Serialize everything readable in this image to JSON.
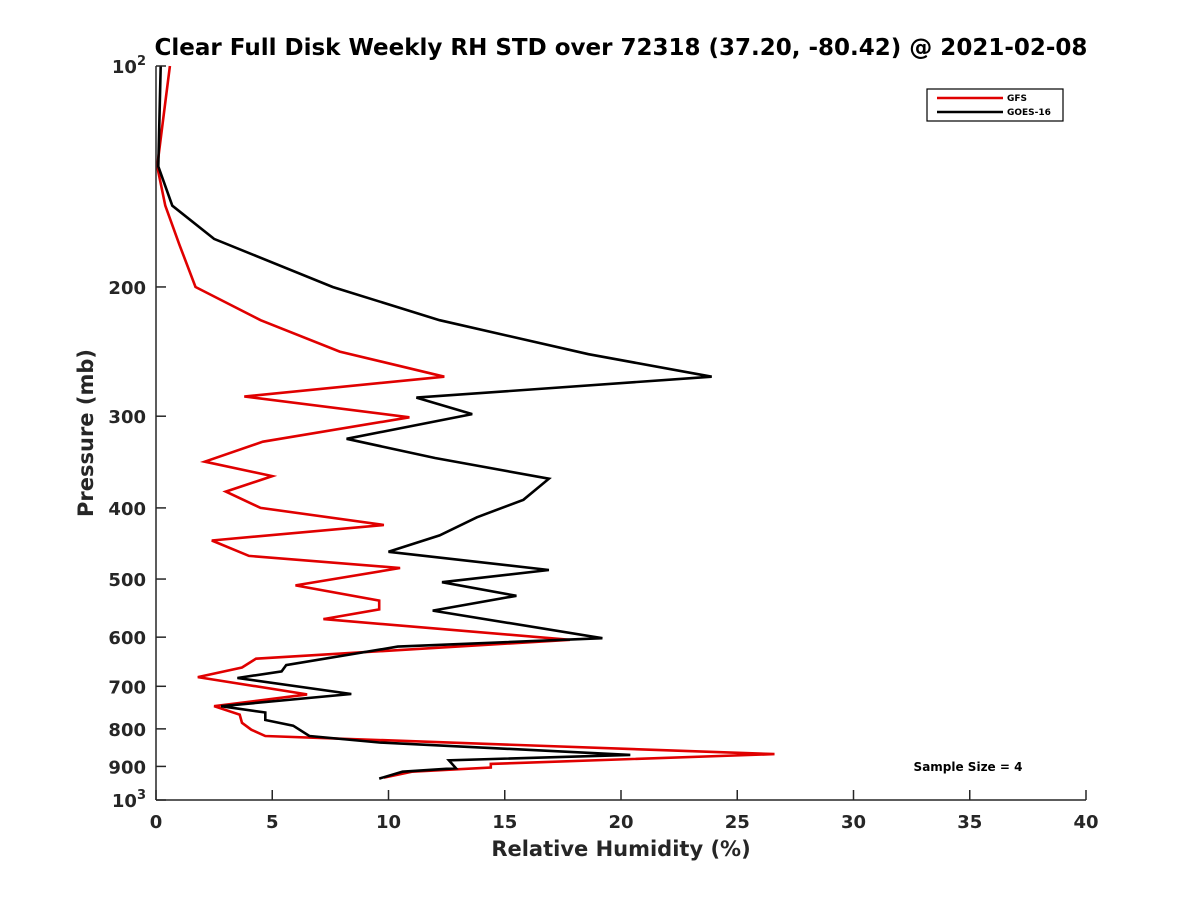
{
  "chart_data": {
    "type": "line",
    "title": "Clear Full Disk Weekly RH STD over 72318 (37.20, -80.42) @ 2021-02-08",
    "xlabel": "Relative Humidity (%)",
    "ylabel": "Pressure (mb)",
    "xlim": [
      0,
      40
    ],
    "ylim": [
      100,
      1000
    ],
    "y_scale": "log",
    "y_reversed": true,
    "x_ticks": [
      "0",
      "5",
      "10",
      "15",
      "20",
      "25",
      "30",
      "35",
      "40"
    ],
    "y_ticks": [
      {
        "value": 100,
        "base": "10",
        "exp": "2",
        "label": "10^2"
      },
      {
        "value": 200,
        "label": "200"
      },
      {
        "value": 300,
        "label": "300"
      },
      {
        "value": 400,
        "label": "400"
      },
      {
        "value": 500,
        "label": "500"
      },
      {
        "value": 600,
        "label": "600"
      },
      {
        "value": 700,
        "label": "700"
      },
      {
        "value": 800,
        "label": "800"
      },
      {
        "value": 900,
        "label": "900"
      },
      {
        "value": 1000,
        "base": "10",
        "exp": "3",
        "label": "10^3"
      }
    ],
    "grid": false,
    "legend": "top-right",
    "annotation": "Sample Size = 4",
    "series": [
      {
        "name": "GFS",
        "color": "#e00000",
        "points": [
          [
            0.6,
            100
          ],
          [
            0.05,
            137
          ],
          [
            0.4,
            155
          ],
          [
            1.0,
            175
          ],
          [
            1.7,
            200
          ],
          [
            4.5,
            222
          ],
          [
            7.9,
            245
          ],
          [
            12.4,
            265
          ],
          [
            3.8,
            282
          ],
          [
            10.9,
            301
          ],
          [
            4.6,
            325
          ],
          [
            2.1,
            346
          ],
          [
            5.0,
            362
          ],
          [
            3.0,
            380
          ],
          [
            4.5,
            400
          ],
          [
            9.8,
            422
          ],
          [
            2.4,
            443
          ],
          [
            4.0,
            465
          ],
          [
            10.5,
            483
          ],
          [
            6.0,
            510
          ],
          [
            9.6,
            535
          ],
          [
            9.6,
            550
          ],
          [
            7.2,
            567
          ],
          [
            17.8,
            605
          ],
          [
            4.3,
            642
          ],
          [
            3.7,
            660
          ],
          [
            1.8,
            680
          ],
          [
            6.5,
            718
          ],
          [
            2.5,
            745
          ],
          [
            3.6,
            765
          ],
          [
            3.7,
            785
          ],
          [
            4.1,
            802
          ],
          [
            4.7,
            818
          ],
          [
            26.6,
            866
          ],
          [
            14.4,
            893
          ],
          [
            14.4,
            903
          ],
          [
            11.0,
            915
          ],
          [
            9.8,
            932
          ]
        ]
      },
      {
        "name": "GOES-16",
        "color": "#000000",
        "points": [
          [
            0.2,
            100
          ],
          [
            0.1,
            137
          ],
          [
            0.7,
            155
          ],
          [
            2.5,
            172
          ],
          [
            7.6,
            200
          ],
          [
            12.2,
            222
          ],
          [
            18.6,
            247
          ],
          [
            23.9,
            265
          ],
          [
            11.2,
            283
          ],
          [
            13.6,
            298
          ],
          [
            8.2,
            322
          ],
          [
            12.0,
            342
          ],
          [
            16.9,
            365
          ],
          [
            15.8,
            390
          ],
          [
            13.8,
            412
          ],
          [
            12.2,
            436
          ],
          [
            10.0,
            459
          ],
          [
            16.9,
            486
          ],
          [
            12.3,
            505
          ],
          [
            15.5,
            527
          ],
          [
            11.9,
            552
          ],
          [
            19.2,
            602
          ],
          [
            10.4,
            618
          ],
          [
            5.6,
            655
          ],
          [
            5.4,
            668
          ],
          [
            3.5,
            682
          ],
          [
            8.4,
            717
          ],
          [
            2.8,
            745
          ],
          [
            4.7,
            760
          ],
          [
            4.7,
            778
          ],
          [
            5.9,
            792
          ],
          [
            6.6,
            818
          ],
          [
            9.6,
            835
          ],
          [
            20.4,
            868
          ],
          [
            12.6,
            883
          ],
          [
            12.9,
            905
          ],
          [
            10.6,
            915
          ],
          [
            9.6,
            935
          ]
        ]
      }
    ]
  }
}
